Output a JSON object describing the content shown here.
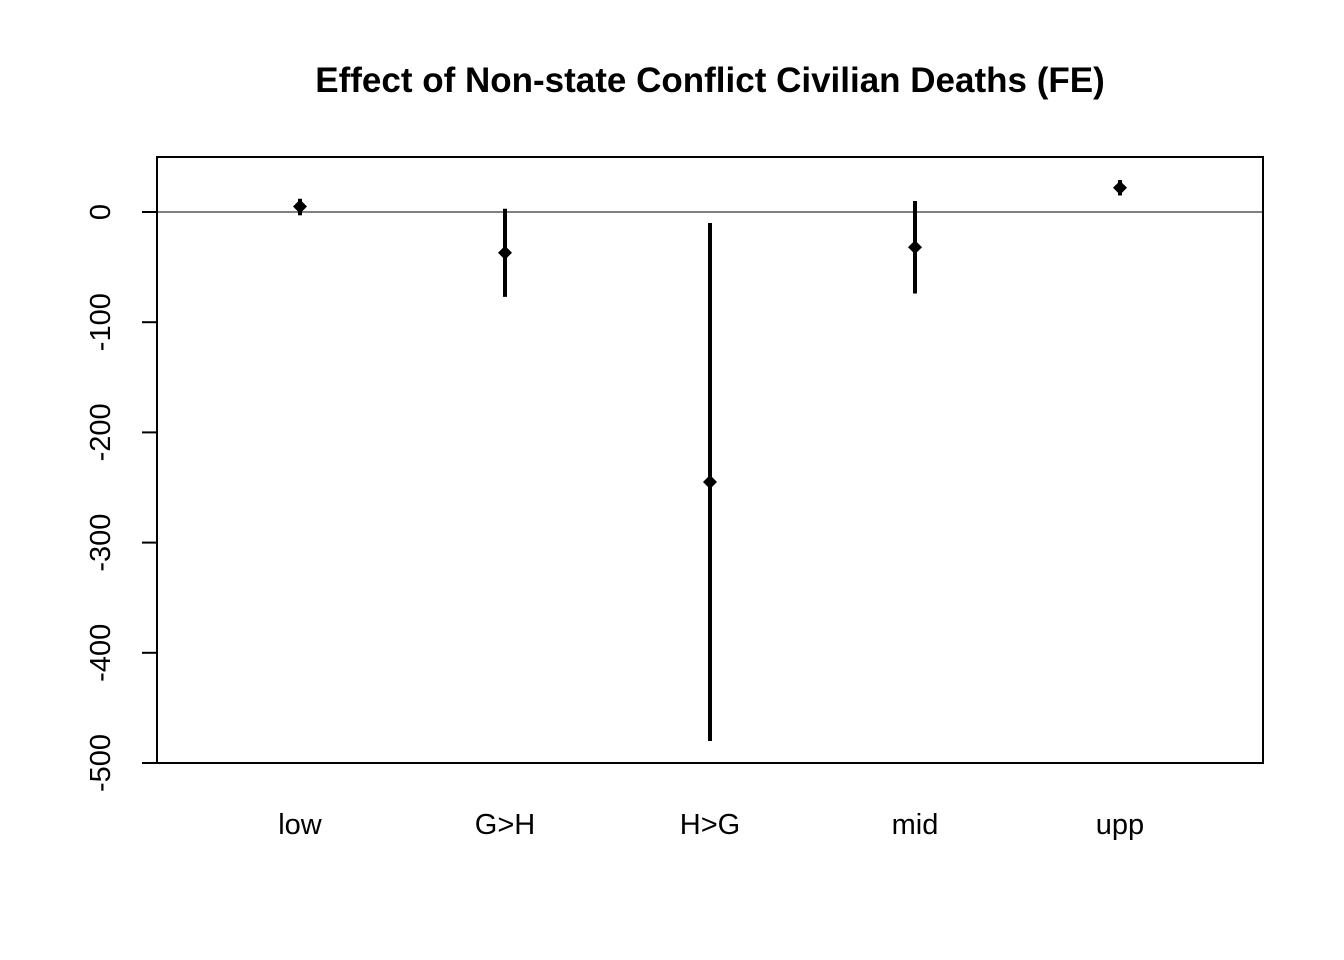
{
  "chart_data": {
    "type": "scatter",
    "title": "Effect of Non-state Conflict Civilian Deaths (FE)",
    "xlabel": "",
    "ylabel": "",
    "categories": [
      "low",
      "G>H",
      "H>G",
      "mid",
      "upp"
    ],
    "series": [
      {
        "estimate": [
          5,
          -37,
          -245,
          -32,
          22
        ],
        "ci_lower": [
          -3,
          -77,
          -480,
          -74,
          15
        ],
        "ci_upper": [
          12,
          3,
          -10,
          10,
          29
        ]
      }
    ],
    "yticks": [
      0,
      -100,
      -200,
      -300,
      -400,
      -500
    ],
    "ytick_labels": [
      "0",
      "-100",
      "-200",
      "-300",
      "-400",
      "-500"
    ],
    "ylim": [
      -500,
      50
    ],
    "reference_line": 0,
    "marker": "diamond",
    "grid": false,
    "legend": "none"
  }
}
